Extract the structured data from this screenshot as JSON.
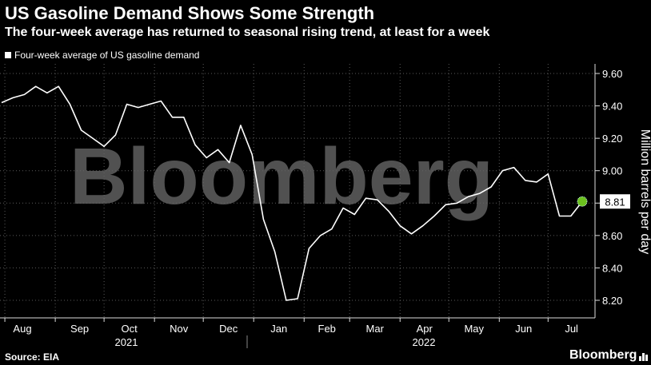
{
  "title": "US Gasoline Demand Shows Some Strength",
  "subtitle": "The four-week average has returned to seasonal rising trend, at least for a week",
  "source": "Source: EIA",
  "brand": "Bloomberg",
  "watermark": "Bloomberg",
  "colors": {
    "background": "#000000",
    "line": "#ffffff",
    "marker": "#6cc11e",
    "grid": "#555555"
  },
  "chart_data": {
    "type": "line",
    "title": "US Gasoline Demand Shows Some Strength",
    "subtitle": "The four-week average has returned to seasonal rising trend, at least for a week",
    "ylabel": "Million barrels per day",
    "ylim": [
      8.1,
      9.7
    ],
    "yticks": [
      8.2,
      8.4,
      8.6,
      8.8,
      9.0,
      9.2,
      9.4,
      9.6
    ],
    "ytick_labels": [
      "8.20",
      "8.40",
      "8.60",
      "8.80",
      "9.00",
      "9.20",
      "9.40",
      "9.60"
    ],
    "grid": true,
    "legend_placement": "top-left",
    "month_labels": [
      "Aug",
      "Sep",
      "Oct",
      "Nov",
      "Dec",
      "Jan",
      "Feb",
      "Mar",
      "Apr",
      "May",
      "Jun",
      "Jul"
    ],
    "year_labels": [
      "2021",
      "2022"
    ],
    "last_value_label": "8.81",
    "series": [
      {
        "name": "Four-week average of US gasoline demand",
        "x": [
          "2021-07-30",
          "2021-08-06",
          "2021-08-13",
          "2021-08-20",
          "2021-08-27",
          "2021-09-03",
          "2021-09-10",
          "2021-09-17",
          "2021-09-24",
          "2021-10-01",
          "2021-10-08",
          "2021-10-15",
          "2021-10-22",
          "2021-10-29",
          "2021-11-05",
          "2021-11-12",
          "2021-11-19",
          "2021-11-26",
          "2021-12-03",
          "2021-12-10",
          "2021-12-17",
          "2021-12-24",
          "2021-12-31",
          "2022-01-07",
          "2022-01-14",
          "2022-01-21",
          "2022-01-28",
          "2022-02-04",
          "2022-02-11",
          "2022-02-18",
          "2022-02-25",
          "2022-03-04",
          "2022-03-11",
          "2022-03-18",
          "2022-03-25",
          "2022-04-01",
          "2022-04-08",
          "2022-04-15",
          "2022-04-22",
          "2022-04-29",
          "2022-05-06",
          "2022-05-13",
          "2022-05-20",
          "2022-05-27",
          "2022-06-03",
          "2022-06-10",
          "2022-06-17",
          "2022-06-24",
          "2022-07-01",
          "2022-07-08",
          "2022-07-15",
          "2022-07-22"
        ],
        "values": [
          9.42,
          9.45,
          9.47,
          9.52,
          9.48,
          9.52,
          9.41,
          9.25,
          9.2,
          9.15,
          9.22,
          9.41,
          9.39,
          9.41,
          9.43,
          9.33,
          9.33,
          9.16,
          9.08,
          9.13,
          9.05,
          9.28,
          9.1,
          8.7,
          8.5,
          8.2,
          8.21,
          8.52,
          8.6,
          8.64,
          8.77,
          8.73,
          8.83,
          8.82,
          8.75,
          8.66,
          8.61,
          8.66,
          8.72,
          8.79,
          8.8,
          8.84,
          8.86,
          8.9,
          9.0,
          9.02,
          8.94,
          8.93,
          8.98,
          8.72,
          8.72,
          8.81
        ]
      }
    ]
  }
}
